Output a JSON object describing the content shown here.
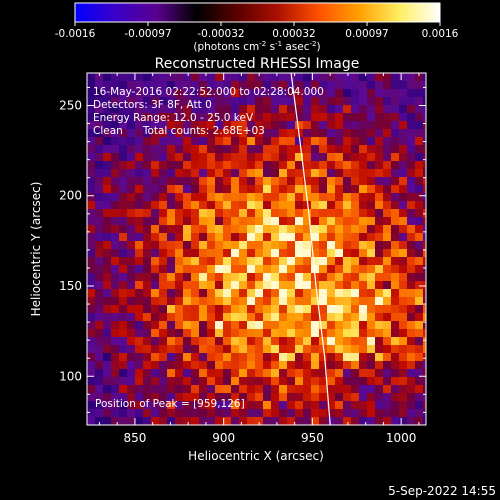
{
  "chart_data": {
    "type": "heatmap",
    "title": "Reconstructed RHESSI Image",
    "xlabel": "Heliocentric X (arcsec)",
    "ylabel": "Heliocentric Y (arcsec)",
    "xlim": [
      823,
      1014
    ],
    "ylim": [
      73,
      268
    ],
    "xticks": [
      850,
      900,
      950,
      1000
    ],
    "yticks": [
      100,
      150,
      200,
      250
    ],
    "colorbar": {
      "range": [
        -0.0016,
        0.0016
      ],
      "tick_labels": [
        "-0.0016",
        "-0.00097",
        "-0.00032",
        "0.00032",
        "0.00097",
        "0.0016"
      ],
      "unit_prefix": "(photons cm",
      "unit_exp1": "-2",
      "unit_mid": " s",
      "unit_exp2": "-1",
      "unit_mid2": " asec",
      "unit_exp3": "-2",
      "unit_suffix": ")",
      "colors": [
        "#0000ff",
        "#3a00c8",
        "#5a0090",
        "#000000",
        "#5a0000",
        "#aa1000",
        "#ff5000",
        "#ffa000",
        "#ffee60",
        "#ffffff"
      ]
    },
    "annotations": [
      "16-May-2016 02:22:52.000 to 02:28:04.000",
      "Detectors: 3F 8F, Att 0",
      "Energy Range: 12.0 - 25.0 keV",
      "Clean      Total counts: 2.68E+03"
    ],
    "peak_label": "Position of Peak = [959,126]",
    "peak": [
      959,
      126
    ],
    "limb_points": [
      [
        938,
        268
      ],
      [
        943,
        230
      ],
      [
        948,
        190
      ],
      [
        952,
        150
      ],
      [
        957,
        110
      ],
      [
        960,
        73
      ]
    ],
    "source_centers": [
      [
        895,
        165
      ],
      [
        935,
        155
      ],
      [
        960,
        130
      ],
      [
        980,
        160
      ],
      [
        915,
        225
      ]
    ]
  },
  "footer": {
    "date": "5-Sep-2022 14:55"
  }
}
